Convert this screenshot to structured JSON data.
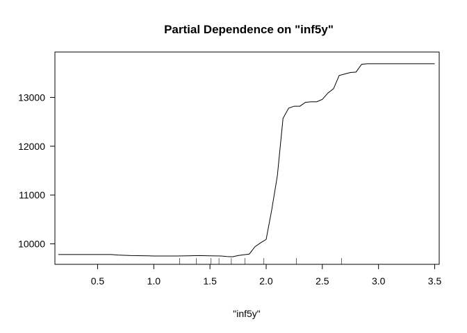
{
  "chart_data": {
    "type": "line",
    "title": "Partial Dependence on \"inf5y\"",
    "xlabel": "\"inf5y\"",
    "ylabel": "",
    "xlim": [
      0.12,
      3.54
    ],
    "ylim": [
      9580,
      13930
    ],
    "x_ticks": [
      0.5,
      1.0,
      1.5,
      2.0,
      2.5,
      3.0,
      3.5
    ],
    "x_tick_labels": [
      "0.5",
      "1.0",
      "1.5",
      "2.0",
      "2.5",
      "3.0",
      "3.5"
    ],
    "y_ticks": [
      10000,
      11000,
      12000,
      13000
    ],
    "y_tick_labels": [
      "10000",
      "11000",
      "12000",
      "13000"
    ],
    "grid": false,
    "legend": "none",
    "series": [
      {
        "x": [
          0.15,
          0.62,
          0.68,
          0.8,
          0.95,
          1.0,
          1.2,
          1.3,
          1.4,
          1.5,
          1.6,
          1.65,
          1.7,
          1.75,
          1.8,
          1.85,
          1.9,
          1.95,
          2.0,
          2.05,
          2.1,
          2.15,
          2.2,
          2.25,
          2.3,
          2.35,
          2.4,
          2.45,
          2.5,
          2.55,
          2.6,
          2.65,
          2.7,
          2.75,
          2.8,
          2.85,
          2.9,
          2.95,
          3.0,
          3.05,
          3.1,
          3.15,
          3.2,
          3.3,
          3.5
        ],
        "y": [
          9780,
          9780,
          9770,
          9760,
          9755,
          9750,
          9750,
          9755,
          9760,
          9755,
          9750,
          9740,
          9735,
          9760,
          9775,
          9790,
          9940,
          10020,
          10090,
          10700,
          11400,
          12570,
          12780,
          12820,
          12820,
          12900,
          12910,
          12910,
          12960,
          13090,
          13180,
          13450,
          13480,
          13510,
          13520,
          13680,
          13690,
          13690,
          13690,
          13690,
          13690,
          13690,
          13690,
          13690,
          13690
        ]
      }
    ],
    "rug": [
      1.23,
      1.38,
      1.51,
      1.58,
      1.69,
      1.81,
      1.98,
      2.27,
      2.67
    ],
    "line_color": "#000000"
  }
}
